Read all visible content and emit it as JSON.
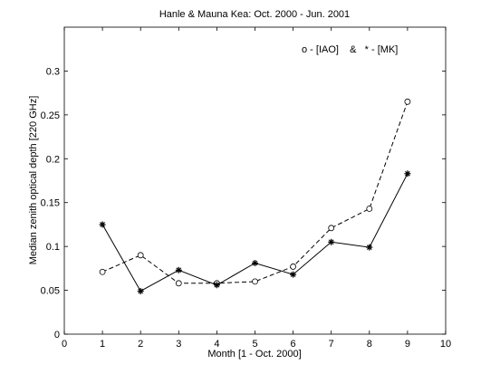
{
  "chart_data": {
    "type": "line",
    "title": "Hanle & Mauna Kea: Oct. 2000 - Jun. 2001",
    "xlabel": "Month [1 - Oct. 2000]",
    "ylabel": "Median zenith optical depth [220 GHz]",
    "xlim": [
      0,
      10
    ],
    "ylim": [
      0,
      0.35
    ],
    "xticks": [
      "0",
      "1",
      "2",
      "3",
      "4",
      "5",
      "6",
      "7",
      "8",
      "9",
      "10"
    ],
    "yticks": [
      "0",
      "0.05",
      "0.1",
      "0.15",
      "0.2",
      "0.25",
      "0.3"
    ],
    "grid": false,
    "legend_text": "o - [IAO]    &   * - [MK]",
    "x": [
      1,
      2,
      3,
      4,
      5,
      6,
      7,
      8,
      9
    ],
    "series": [
      {
        "key": "iao",
        "marker": "circle",
        "line_style": "dashed",
        "color": "#000000",
        "values": [
          0.071,
          0.09,
          0.058,
          0.058,
          0.06,
          0.077,
          0.121,
          0.143,
          0.265
        ]
      },
      {
        "key": "mk",
        "marker": "asterisk",
        "line_style": "solid",
        "color": "#000000",
        "values": [
          0.125,
          0.049,
          0.073,
          0.056,
          0.081,
          0.068,
          0.105,
          0.099,
          0.183
        ]
      }
    ]
  }
}
